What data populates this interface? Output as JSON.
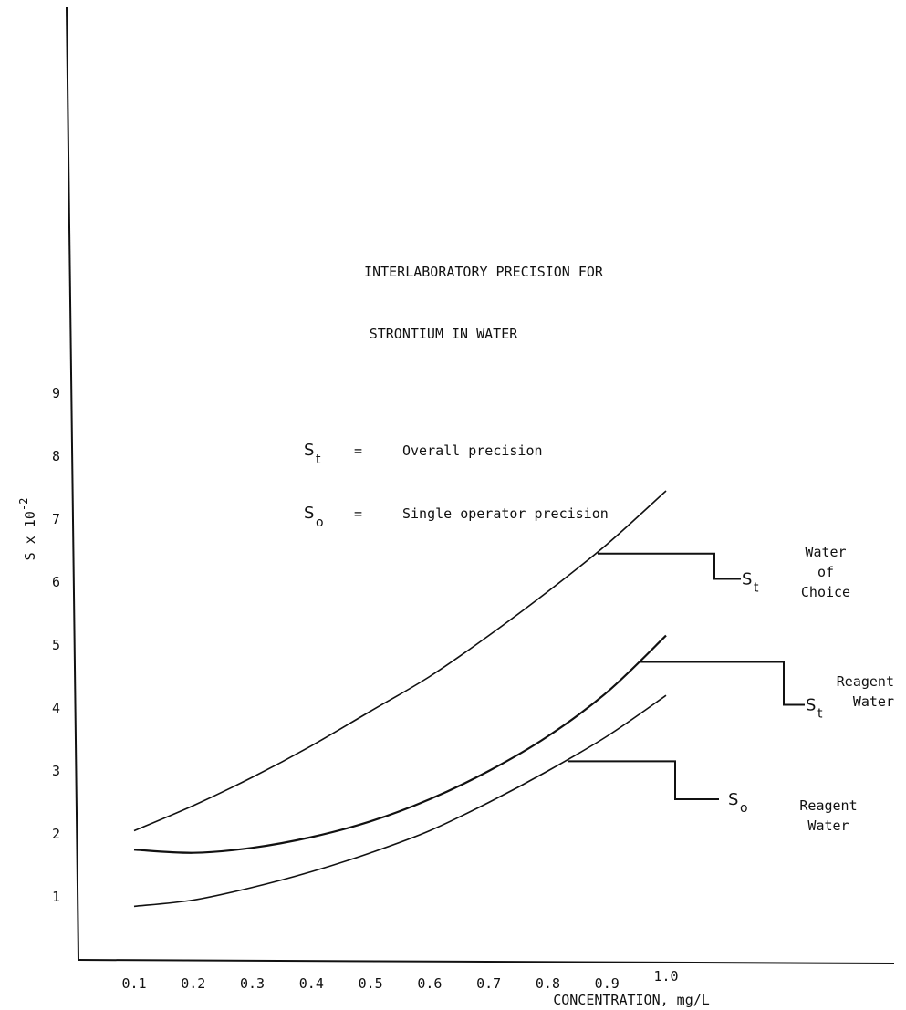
{
  "chart_data": {
    "type": "line",
    "title_lines": [
      "INTERLABORATORY PRECISION FOR",
      "STRONTIUM IN WATER"
    ],
    "xlabel": "CONCENTRATION, mg/L",
    "ylabel_text": "S x 10",
    "ylabel_exp": "-2",
    "x_ticks": [
      "0.1",
      "0.2",
      "0.3",
      "0.4",
      "0.5",
      "0.6",
      "0.7",
      "0.8",
      "0.9",
      "1.0"
    ],
    "y_ticks": [
      "1",
      "2",
      "3",
      "4",
      "5",
      "6",
      "7",
      "8",
      "9"
    ],
    "xlim": [
      0.1,
      1.0
    ],
    "ylim": [
      1,
      9
    ],
    "grid": false,
    "legend_entries": [
      {
        "symbol": "S",
        "sub": "t",
        "eq": "=",
        "desc": "Overall precision"
      },
      {
        "symbol": "S",
        "sub": "o",
        "eq": "=",
        "desc": "Single operator precision"
      }
    ],
    "series": [
      {
        "id": "st_water_of_choice",
        "x": [
          0.1,
          0.2,
          0.3,
          0.4,
          0.5,
          0.6,
          0.7,
          0.8,
          0.9,
          1.0
        ],
        "values": [
          2.05,
          2.45,
          2.9,
          3.4,
          3.95,
          4.5,
          5.15,
          5.85,
          6.6,
          7.45
        ],
        "label_symbol": "S",
        "label_sub": "t",
        "label_lines": [
          "Water",
          "of",
          "Choice"
        ],
        "label_y": 6.05,
        "heavy": false
      },
      {
        "id": "st_reagent_water",
        "x": [
          0.1,
          0.2,
          0.3,
          0.4,
          0.5,
          0.6,
          0.7,
          0.8,
          0.9,
          1.0
        ],
        "values": [
          1.75,
          1.7,
          1.78,
          1.95,
          2.2,
          2.55,
          3.0,
          3.55,
          4.25,
          5.15
        ],
        "label_symbol": "S",
        "label_sub": "t",
        "label_lines": [
          "Reagent",
          "Water"
        ],
        "label_y": 4.05,
        "heavy": true
      },
      {
        "id": "so_reagent_water",
        "x": [
          0.1,
          0.2,
          0.3,
          0.4,
          0.5,
          0.6,
          0.7,
          0.8,
          0.9,
          1.0
        ],
        "values": [
          0.85,
          0.95,
          1.15,
          1.4,
          1.7,
          2.05,
          2.5,
          3.0,
          3.55,
          4.2
        ],
        "label_symbol": "S",
        "label_sub": "o",
        "label_lines": [
          "Reagent",
          "Water"
        ],
        "label_y": 2.55,
        "heavy": false
      }
    ]
  }
}
